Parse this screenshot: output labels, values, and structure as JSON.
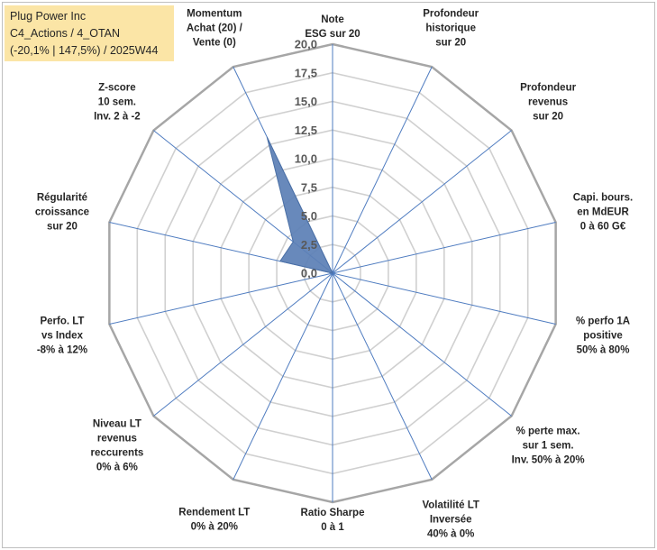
{
  "chart_data": {
    "type": "radar",
    "title": [
      "Plug Power Inc",
      "C4_Actions / 4_OTAN",
      "(-20,1% | 147,5%) / 2025W44"
    ],
    "rlim": [
      0,
      20
    ],
    "ticks": [
      "0,0",
      "2,5",
      "5,0",
      "7,5",
      "10,0",
      "12,5",
      "15,0",
      "17,5",
      "20,0"
    ],
    "grid": true,
    "axes": [
      [
        "Note",
        "ESG sur 20"
      ],
      [
        "Profondeur",
        "historique",
        "sur 20"
      ],
      [
        "Profondeur",
        "revenus",
        "sur 20"
      ],
      [
        "Capi. bours.",
        "en MdEUR",
        "0 à 60 G€"
      ],
      [
        "% perfo 1A",
        "positive",
        "50% à 80%"
      ],
      [
        "% perte max.",
        "sur 1 sem.",
        "Inv. 50% à 20%"
      ],
      [
        "Volatilité LT",
        "Inversée",
        "40% à 0%"
      ],
      [
        "Ratio Sharpe",
        "0 à 1"
      ],
      [
        "Rendement LT",
        "0% à 20%"
      ],
      [
        "Niveau LT",
        "revenus",
        "reccurents",
        "0% à 6%"
      ],
      [
        "Perfo. LT",
        "vs Index",
        "-8% à 12%"
      ],
      [
        "Régularité",
        "croissance",
        "sur 20"
      ],
      [
        "Z-score",
        "10 sem.",
        "Inv. 2 à -2"
      ],
      [
        "Momentum",
        "Achat (20) /",
        "Vente (0)"
      ]
    ],
    "series": [
      {
        "name": "Plug Power Inc",
        "values": [
          0,
          0,
          0,
          0,
          0,
          0,
          0,
          0,
          0,
          0,
          0,
          4.7,
          4.4,
          13.2
        ],
        "color": "#5b7fb5"
      }
    ]
  }
}
